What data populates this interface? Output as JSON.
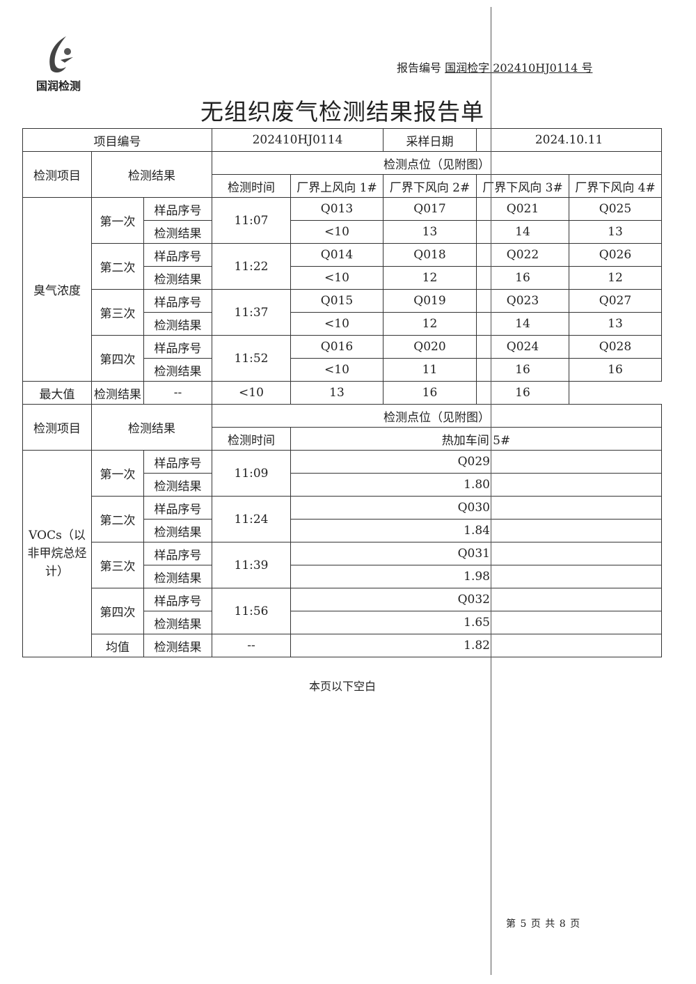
{
  "logo": {
    "text": "国润检测",
    "icon": "guorun-logo-icon"
  },
  "header": {
    "report_label": "报告编号",
    "report_value": "国润检字 202410HJ0114 号"
  },
  "title": "无组织废气检测结果报告单",
  "info": {
    "project_label": "项目编号",
    "project_value": "202410HJ0114",
    "date_label": "采样日期",
    "date_value": "2024.10.11"
  },
  "odor": {
    "item_label": "检测项目",
    "result_label": "检测结果",
    "points_label": "检测点位（见附图）",
    "time_label": "检测时间",
    "points": [
      "厂界上风向 1#",
      "厂界下风向 2#",
      "厂界下风向 3#",
      "厂界下风向 4#"
    ],
    "name": "臭气浓度",
    "sample_label": "样品序号",
    "res_label": "检测结果",
    "rounds": [
      {
        "label": "第一次",
        "time": "11:07",
        "samples": [
          "Q013",
          "Q017",
          "Q021",
          "Q025"
        ],
        "results": [
          "<10",
          "13",
          "14",
          "13"
        ]
      },
      {
        "label": "第二次",
        "time": "11:22",
        "samples": [
          "Q014",
          "Q018",
          "Q022",
          "Q026"
        ],
        "results": [
          "<10",
          "12",
          "16",
          "12"
        ]
      },
      {
        "label": "第三次",
        "time": "11:37",
        "samples": [
          "Q015",
          "Q019",
          "Q023",
          "Q027"
        ],
        "results": [
          "<10",
          "12",
          "14",
          "13"
        ]
      },
      {
        "label": "第四次",
        "time": "11:52",
        "samples": [
          "Q016",
          "Q020",
          "Q024",
          "Q028"
        ],
        "results": [
          "<10",
          "11",
          "16",
          "16"
        ]
      }
    ],
    "max": {
      "label": "最大值",
      "res_label": "检测结果",
      "time": "--",
      "results": [
        "<10",
        "13",
        "16",
        "16"
      ]
    }
  },
  "vocs": {
    "item_label": "检测项目",
    "result_label": "检测结果",
    "points_label": "检测点位（见附图）",
    "time_label": "检测时间",
    "point": "热加车间 5#",
    "name": "VOCs（以非甲烷总烃计）",
    "sample_label": "样品序号",
    "res_label": "检测结果",
    "rounds": [
      {
        "label": "第一次",
        "time": "11:09",
        "sample": "Q029",
        "result": "1.80"
      },
      {
        "label": "第二次",
        "time": "11:24",
        "sample": "Q030",
        "result": "1.84"
      },
      {
        "label": "第三次",
        "time": "11:39",
        "sample": "Q031",
        "result": "1.98"
      },
      {
        "label": "第四次",
        "time": "11:56",
        "sample": "Q032",
        "result": "1.65"
      }
    ],
    "mean": {
      "label": "均值",
      "res_label": "检测结果",
      "time": "--",
      "result": "1.82"
    }
  },
  "blank_note": "本页以下空白",
  "page": "第 5 页 共 8 页"
}
